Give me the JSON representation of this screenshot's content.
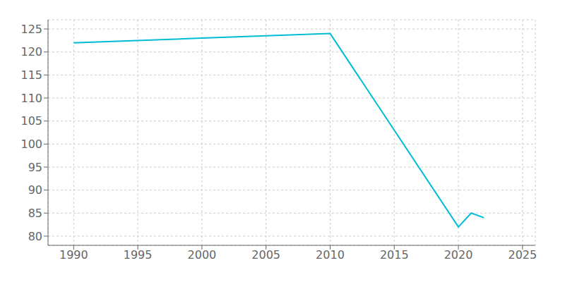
{
  "chart_data": {
    "type": "line",
    "x": [
      1990,
      2000,
      2010,
      2020,
      2021,
      2022
    ],
    "values": [
      122,
      123,
      124,
      82,
      85,
      84
    ],
    "color": "#00bcd4",
    "xlim": [
      1988,
      2026
    ],
    "ylim": [
      78,
      127
    ],
    "xticks": [
      1990,
      1995,
      2000,
      2005,
      2010,
      2015,
      2020,
      2025
    ],
    "yticks": [
      80,
      85,
      90,
      95,
      100,
      105,
      110,
      115,
      120,
      125
    ],
    "grid": true
  }
}
